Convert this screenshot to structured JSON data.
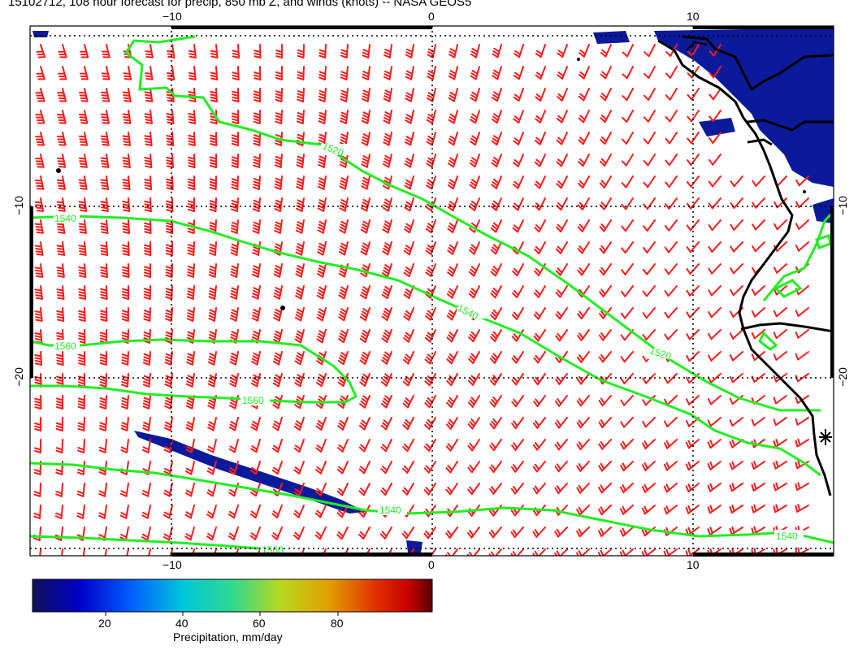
{
  "title": "15102712, 108 hour forecast for precip, 850 mb Z, and winds (knots) -- NASA GEOS5",
  "map": {
    "x_ticks": [
      "−10",
      "0",
      "10"
    ],
    "y_ticks": [
      "−10",
      "−20"
    ],
    "contour_labels": [
      "1520",
      "1540",
      "1540",
      "1560",
      "1560",
      "1540",
      "1520",
      "1540",
      "1540",
      "1560"
    ],
    "colors": {
      "contour": "#22ee22",
      "barb": "#ff1a1a",
      "precip_low": "#0a1a8a",
      "coast": "#000000"
    }
  },
  "colorbar": {
    "ticks": [
      "20",
      "40",
      "60",
      "80"
    ],
    "label": "Precipitation, mm/day",
    "colormap": [
      "#10105a",
      "#0000c8",
      "#0060ff",
      "#00c8d8",
      "#30d890",
      "#b8d820",
      "#e0a000",
      "#e03000",
      "#c80000",
      "#5a0000"
    ]
  }
}
